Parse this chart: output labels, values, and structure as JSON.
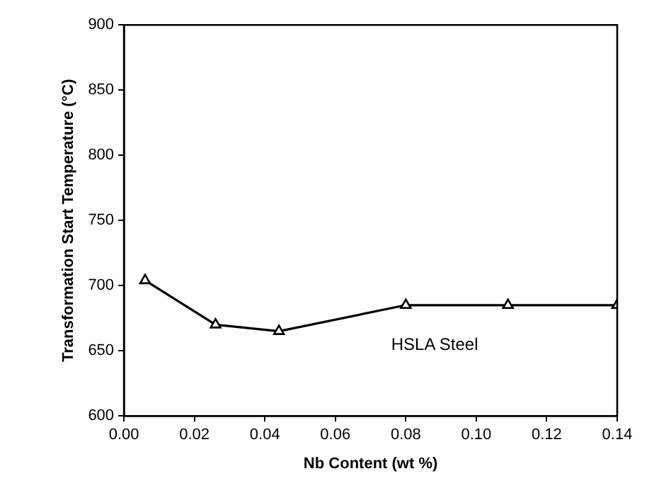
{
  "chart_data": {
    "type": "line",
    "xlabel": "Nb Content (wt %)",
    "ylabel": "Transformation Start Temperature (°C)",
    "x": [
      0.006,
      0.026,
      0.044,
      0.08,
      0.109,
      0.14
    ],
    "series": [
      {
        "color": "#000000",
        "values": [
          704,
          670,
          665,
          685,
          685,
          685
        ]
      }
    ],
    "xlim": [
      0,
      0.14
    ],
    "xticks": [
      {
        "value": 0,
        "label": "0.00"
      },
      0.02,
      0.04,
      0.06,
      0.08,
      {
        "value": 0.1,
        "label": "0.10"
      },
      0.12,
      0.14
    ],
    "ylim": [
      600,
      900
    ],
    "yticks": [
      600,
      650,
      700,
      750,
      800,
      850,
      900
    ],
    "marker": "triangle",
    "line_style": "solid",
    "grid": false,
    "legend": false,
    "annotations": [
      "HSLA Steel"
    ]
  }
}
